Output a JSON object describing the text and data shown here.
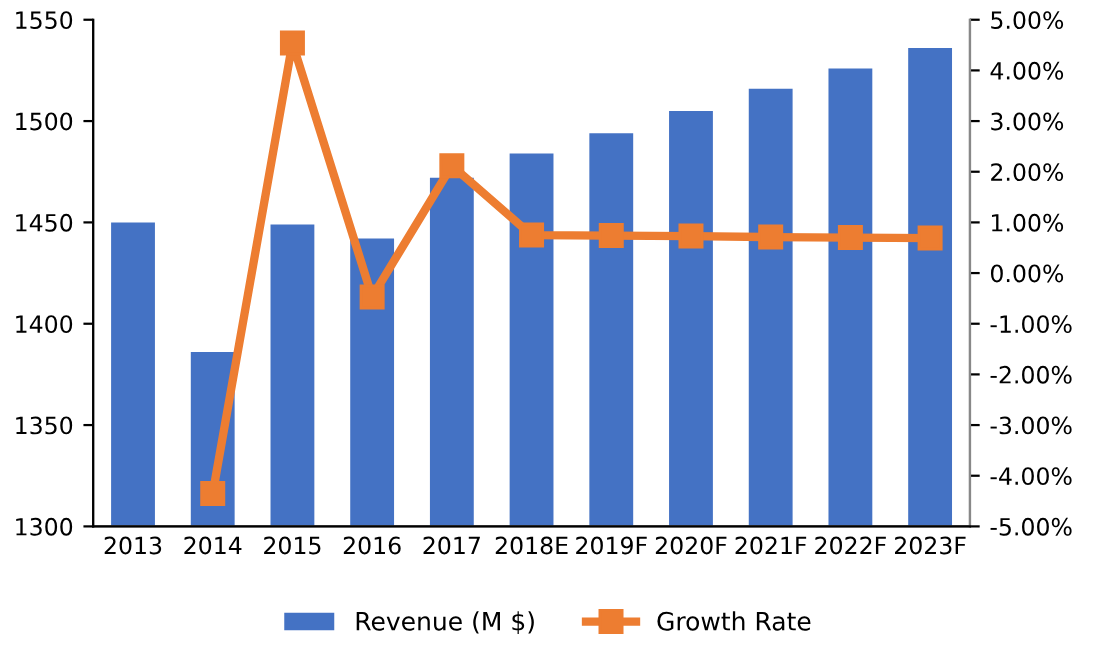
{
  "chart_data": {
    "type": "bar",
    "categories": [
      "2013",
      "2014",
      "2015",
      "2016",
      "2017",
      "2018E",
      "2019F",
      "2020F",
      "2021F",
      "2022F",
      "2023F"
    ],
    "series": [
      {
        "name": "Revenue (M $)",
        "color": "#4472c4",
        "values": [
          1450,
          1386,
          1449,
          1442,
          1472,
          1484,
          1494,
          1505,
          1516,
          1526,
          1536
        ]
      },
      {
        "name": "Growth Rate",
        "type": "line",
        "axis": "y2",
        "color": "#ed7d31",
        "marker": "square",
        "values": [
          null,
          -4.35,
          4.54,
          -0.47,
          2.12,
          0.75,
          0.74,
          0.73,
          0.71,
          0.7,
          0.69
        ]
      }
    ],
    "ylim": [
      1300,
      1550
    ],
    "yticks": [
      1300,
      1350,
      1400,
      1450,
      1500,
      1550
    ],
    "y2lim": [
      -5,
      5
    ],
    "y2ticks": [
      {
        "value": 5,
        "label": "5.00%"
      },
      {
        "value": 4,
        "label": "4.00%"
      },
      {
        "value": 3,
        "label": "3.00%"
      },
      {
        "value": 2,
        "label": "2.00%"
      },
      {
        "value": 1,
        "label": "1.00%"
      },
      {
        "value": 0,
        "label": "0.00%"
      },
      {
        "value": -1,
        "label": "-1.00%"
      },
      {
        "value": -2,
        "label": "-2.00%"
      },
      {
        "value": -3,
        "label": "-3.00%"
      },
      {
        "value": -4,
        "label": "-4.00%"
      },
      {
        "value": -5,
        "label": "-5.00%"
      }
    ],
    "legend": "bottom",
    "grid": false
  }
}
